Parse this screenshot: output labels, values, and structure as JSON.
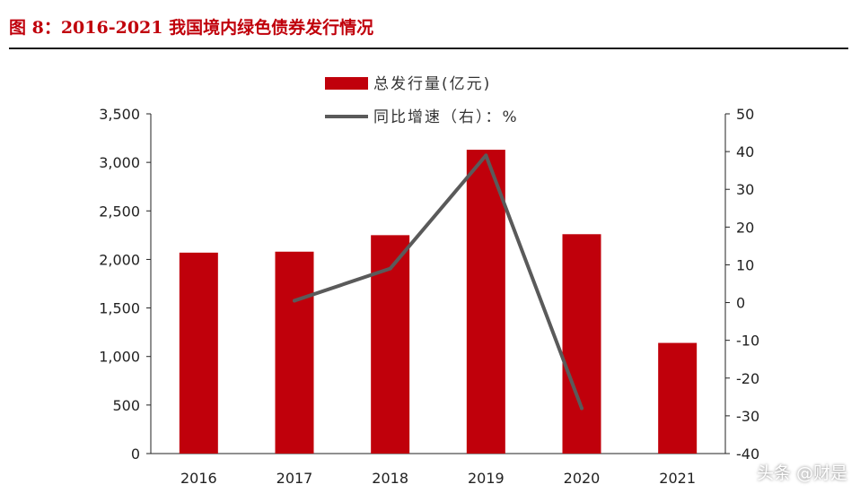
{
  "title": "图 8：2016-2021 我国境内绿色债券发行情况",
  "watermark": "头条 @财是",
  "colors": {
    "bar": "#c0000b",
    "line": "#5a5a5a",
    "title": "#c0000b"
  },
  "chart_data": {
    "type": "bar",
    "categories": [
      "2016",
      "2017",
      "2018",
      "2019",
      "2020",
      "2021"
    ],
    "series": [
      {
        "name": "总发行量(亿元)",
        "type": "bar",
        "axis": "left",
        "values": [
          2070,
          2080,
          2250,
          3130,
          2260,
          1140
        ]
      },
      {
        "name": "同比增速（右）：%",
        "type": "line",
        "axis": "right",
        "values": [
          null,
          0.5,
          9,
          39,
          -28,
          null
        ]
      }
    ],
    "y_left": {
      "min": 0,
      "max": 3500,
      "step": 500,
      "tick_labels": [
        "0",
        "500",
        "1,000",
        "1,500",
        "2,000",
        "2,500",
        "3,000",
        "3,500"
      ]
    },
    "y_right": {
      "min": -40,
      "max": 50,
      "step": 10,
      "tick_labels": [
        "-40",
        "-30",
        "-20",
        "-10",
        "0",
        "10",
        "20",
        "30",
        "40",
        "50"
      ]
    },
    "legend": "top-center",
    "grid": false
  }
}
